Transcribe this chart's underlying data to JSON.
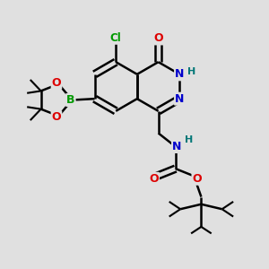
{
  "background_color": "#e0e0e0",
  "bond_color": "#000000",
  "bond_width": 1.8,
  "atom_colors": {
    "C": "#000000",
    "N": "#0000cc",
    "O": "#dd0000",
    "B": "#009900",
    "Cl": "#009900",
    "H": "#007777"
  },
  "figsize": [
    3.0,
    3.0
  ],
  "dpi": 100,
  "xlim": [
    0,
    10
  ],
  "ylim": [
    0,
    10
  ]
}
